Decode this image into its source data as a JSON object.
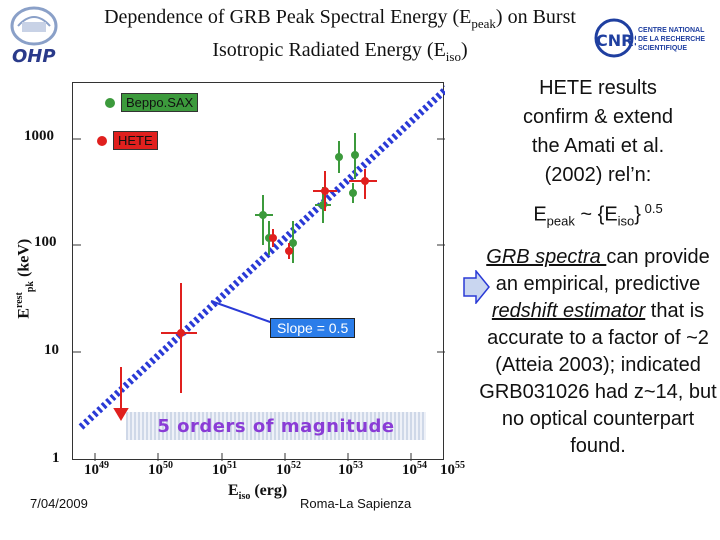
{
  "header": {
    "title_line1_prefix": "Dependence of GRB Peak Spectral Energy (E",
    "title_line1_sub": "peak",
    "title_line1_suffix": ") on Burst",
    "title_line2_prefix": "Isotropic Radiated Energy (E",
    "title_line2_sub": "iso",
    "title_line2_suffix": ")"
  },
  "logos": {
    "left_text": "OHP",
    "right_cnrs": "CNRS",
    "right_lines": [
      "CENTRE NATIONAL",
      "DE LA RECHERCHE",
      "SCIENTIFIQUE"
    ]
  },
  "plot": {
    "legend": [
      {
        "label": "Beppo.SAX",
        "color": "#3c9a3c"
      },
      {
        "label": "HETE",
        "color": "#e0201e"
      }
    ],
    "y_tick_labels": [
      "1000",
      "100",
      "10",
      "1"
    ],
    "x_tick_labels": [
      {
        "base": "10",
        "exp": "49"
      },
      {
        "base": "10",
        "exp": "50"
      },
      {
        "base": "10",
        "exp": "51"
      },
      {
        "base": "10",
        "exp": "52"
      },
      {
        "base": "10",
        "exp": "53"
      },
      {
        "base": "10",
        "exp": "54"
      },
      {
        "base": "10",
        "exp": "55"
      }
    ],
    "ylabel_main": "E",
    "ylabel_sup": "rest",
    "ylabel_sub": "pk",
    "ylabel_unit": "(keV)",
    "xlabel_main": "E",
    "xlabel_sub": "iso",
    "xlabel_unit": "(erg)",
    "slope_label": "Slope = 0.5",
    "magnitude_label": "5 orders of magnitude"
  },
  "right_panel": {
    "line1": "HETE results",
    "line2": "confirm & extend",
    "line3": "the Amati et al.",
    "line4": "(2002) rel’n:",
    "rel_prefix": "E",
    "rel_sub1": "peak",
    "rel_mid": " ~ {E",
    "rel_sub2": "iso",
    "rel_suffix": "}",
    "rel_sup": " 0.5",
    "p2_underline": "GRB spectra ",
    "p2_a": "can provide an empirical, predictive",
    "p2_italic": "redshift estimator",
    "p2_b": "that is accurate to a factor of ~2 (Atteia 2003); indicated GRB031026 had z~14, but no optical counterpart found."
  },
  "footer": {
    "date": "7/04/2009",
    "venue": "Roma-La Sapienza"
  },
  "colors": {
    "sax_green": "#3c9a3c",
    "hete_red": "#e0201e",
    "fit_line": "#2a3ad6",
    "slope_box": "#2b7de9"
  }
}
